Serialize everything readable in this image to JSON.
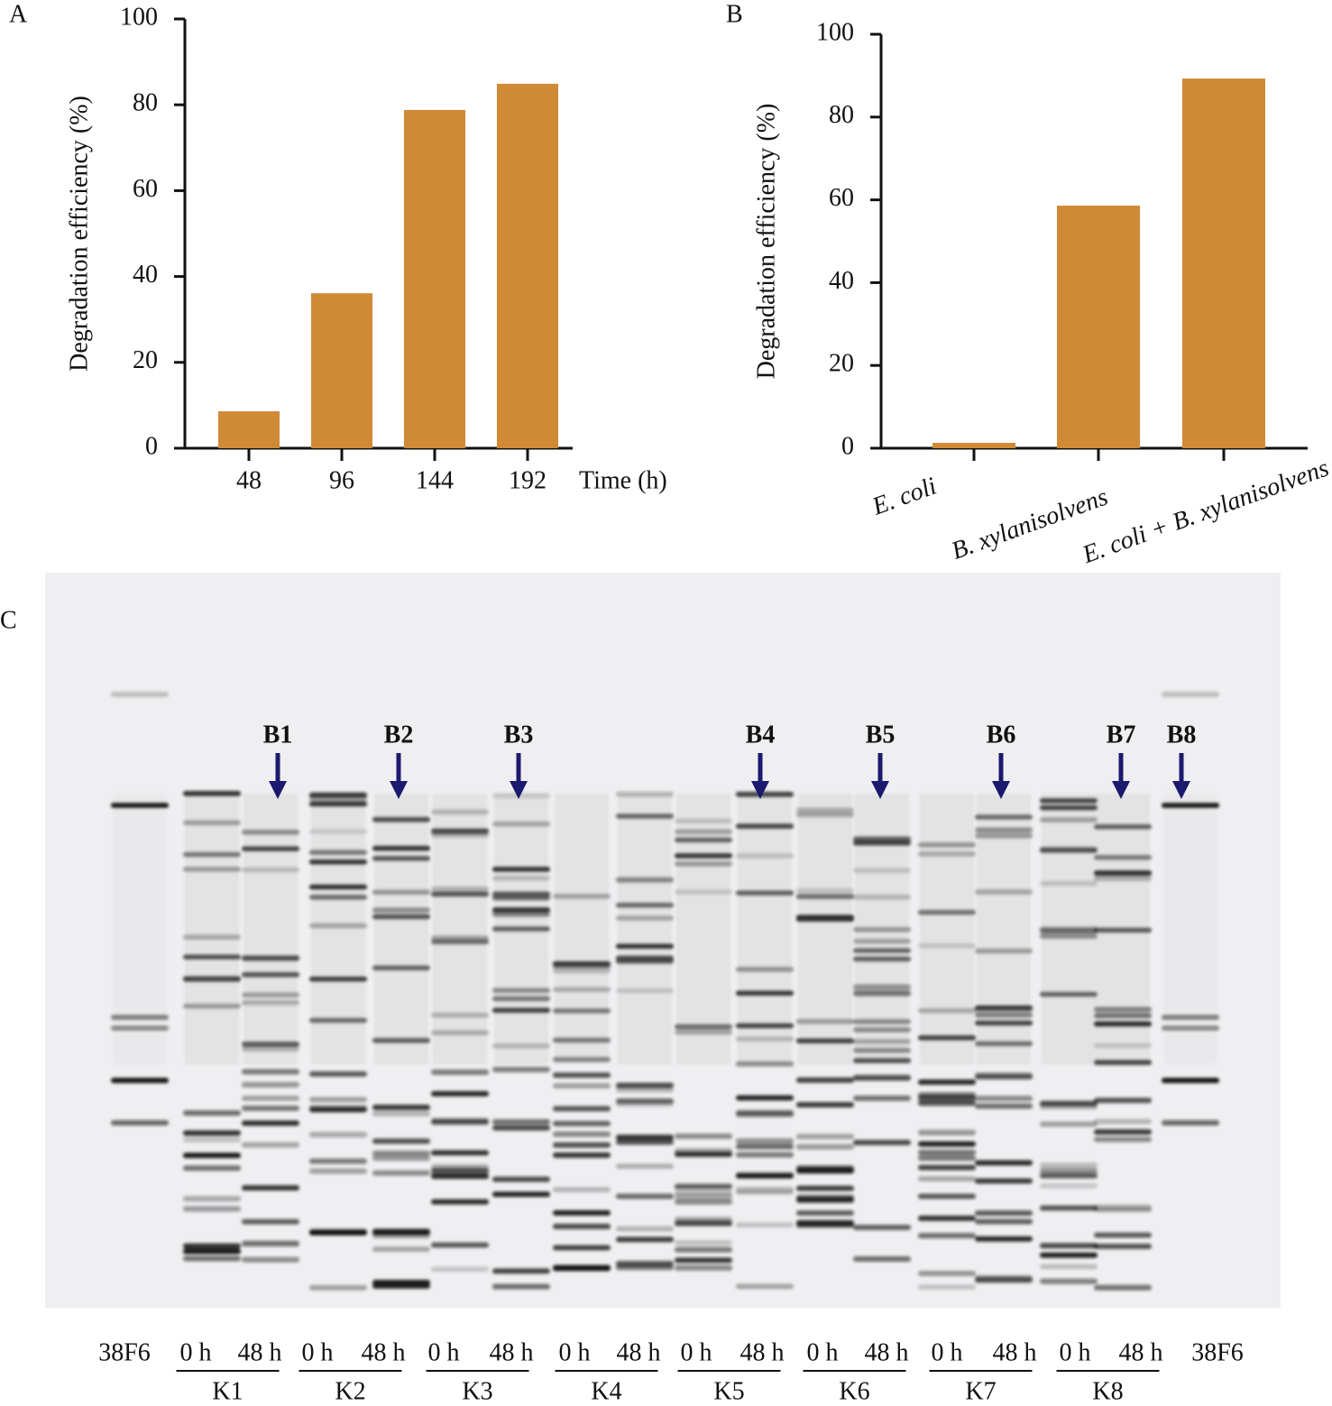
{
  "chart_data": [
    {
      "type": "bar",
      "panel": "A",
      "categories": [
        "48",
        "96",
        "144",
        "192"
      ],
      "values": [
        8.6,
        36.1,
        78.8,
        84.9
      ],
      "color": "#d08a35",
      "ylim": [
        0,
        100
      ],
      "yticks": [
        0,
        20,
        40,
        60,
        80,
        100
      ],
      "y_label": "Degradation efficiency (%)",
      "x_label": "Time (h)"
    },
    {
      "type": "bar",
      "panel": "B",
      "categories": [
        "E. coli",
        "B. xylanisolvens",
        "E. coli + B. xylanisolvens"
      ],
      "values": [
        1.3,
        58.6,
        89.3
      ],
      "color": "#d08a35",
      "ylim": [
        0,
        100
      ],
      "yticks": [
        0,
        20,
        40,
        60,
        80,
        100
      ],
      "y_label": "Degradation efficiency (%)"
    }
  ],
  "gel": {
    "panel": "C",
    "band_labels": [
      "B1",
      "B2",
      "B3",
      "B4",
      "B5",
      "B6",
      "B7",
      "B8"
    ],
    "lanes": [
      "38F6",
      "0 h",
      "48 h",
      "0 h",
      "48 h",
      "0 h",
      "48 h",
      "0 h",
      "48 h",
      "0 h",
      "48 h",
      "0 h",
      "48 h",
      "0 h",
      "48 h",
      "0 h",
      "48 h",
      "38F6"
    ],
    "groups": [
      "K1",
      "K2",
      "K3",
      "K4",
      "K5",
      "K6",
      "K7",
      "K8"
    ]
  }
}
